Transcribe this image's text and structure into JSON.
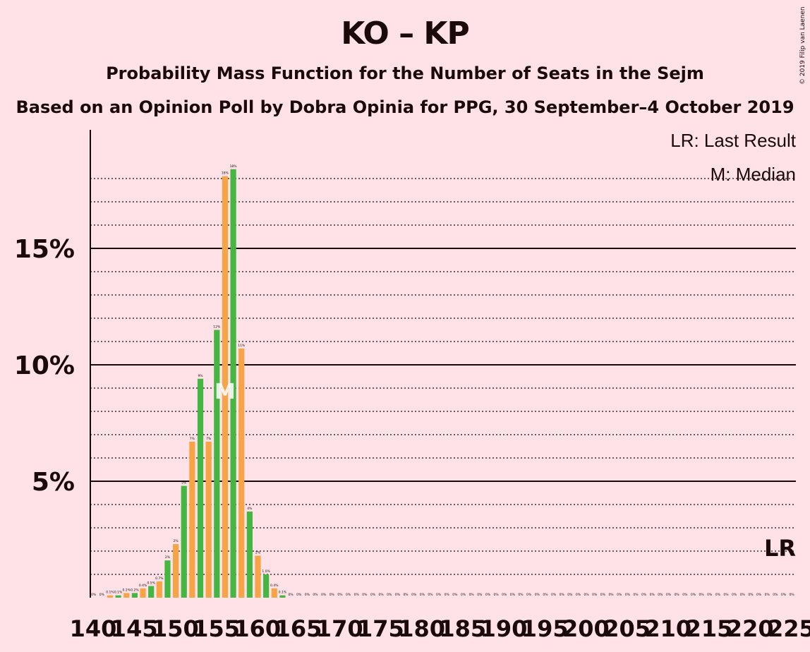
{
  "title": "KO – KP",
  "subtitle": "Probability Mass Function for the Number of Seats in the Sejm",
  "subtitle2": "Based on an Opinion Poll by Dobra Opinia for PPG, 30 September–4 October 2019",
  "copyright": "© 2019 Filip van Laenen",
  "legend": {
    "lr": "LR: Last Result",
    "median": "M: Median"
  },
  "markers": {
    "median_label": "M",
    "median_seat": 156,
    "lr_label": "LR",
    "lr_seat": 225
  },
  "colors": {
    "background": "#FFE2E7",
    "green": "#44B642",
    "orange": "#F7A446",
    "text": "#1a0a0a"
  },
  "chart_data": {
    "type": "bar",
    "xlabel": "",
    "ylabel": "",
    "xlim": [
      140,
      225
    ],
    "ylim": [
      0,
      20
    ],
    "y_ticks": [
      5,
      10,
      15
    ],
    "y_tick_labels": [
      "5%",
      "10%",
      "15%"
    ],
    "x_ticks": [
      140,
      145,
      150,
      155,
      160,
      165,
      170,
      175,
      180,
      185,
      190,
      195,
      200,
      205,
      210,
      215,
      220,
      225
    ],
    "grid": true,
    "seats": [
      140,
      141,
      142,
      143,
      144,
      145,
      146,
      147,
      148,
      149,
      150,
      151,
      152,
      153,
      154,
      155,
      156,
      157,
      158,
      159,
      160,
      161,
      162,
      163,
      164,
      165,
      166,
      167,
      168,
      169,
      170,
      171,
      172,
      173,
      174,
      175,
      176,
      177,
      178,
      179,
      180,
      181,
      182,
      183,
      184,
      185,
      186,
      187,
      188,
      189,
      190,
      191,
      192,
      193,
      194,
      195,
      196,
      197,
      198,
      199,
      200,
      201,
      202,
      203,
      204,
      205,
      206,
      207,
      208,
      209,
      210,
      211,
      212,
      213,
      214,
      215,
      216,
      217,
      218,
      219,
      220,
      221,
      222,
      223,
      224,
      225
    ],
    "values": [
      0,
      0,
      0.1,
      0.1,
      0.2,
      0.2,
      0.4,
      0.5,
      0.7,
      1.6,
      2.3,
      4.8,
      6.7,
      9.4,
      6.7,
      11.5,
      18.1,
      18.4,
      10.7,
      3.7,
      1.8,
      1.0,
      0.4,
      0.1,
      0,
      0,
      0,
      0,
      0,
      0,
      0,
      0,
      0,
      0,
      0,
      0,
      0,
      0,
      0,
      0,
      0,
      0,
      0,
      0,
      0,
      0,
      0,
      0,
      0,
      0,
      0,
      0,
      0,
      0,
      0,
      0,
      0,
      0,
      0,
      0,
      0,
      0,
      0,
      0,
      0,
      0,
      0,
      0,
      0,
      0,
      0,
      0,
      0,
      0,
      0,
      0,
      0,
      0,
      0,
      0,
      0,
      0,
      0,
      0,
      0,
      0
    ],
    "labels": [
      "0%",
      "0%",
      "0.1%",
      "0.1%",
      "0.2%",
      "0.2%",
      "0.4%",
      "0.5%",
      "0.7%",
      "2%",
      "2%",
      "5%",
      "7%",
      "9%",
      "7%",
      "12%",
      "18%",
      "18%",
      "11%",
      "4%",
      "2%",
      "1.0%",
      "0.4%",
      "0.1%",
      "0%",
      "0%",
      "0%",
      "0%",
      "0%",
      "0%",
      "0%",
      "0%",
      "0%",
      "0%",
      "0%",
      "0%",
      "0%",
      "0%",
      "0%",
      "0%",
      "0%",
      "0%",
      "0%",
      "0%",
      "0%",
      "0%",
      "0%",
      "0%",
      "0%",
      "0%",
      "0%",
      "0%",
      "0%",
      "0%",
      "0%",
      "0%",
      "0%",
      "0%",
      "0%",
      "0%",
      "0%",
      "0%",
      "0%",
      "0%",
      "0%",
      "0%",
      "0%",
      "0%",
      "0%",
      "0%",
      "0%",
      "0%",
      "0%",
      "0%",
      "0%",
      "0%",
      "0%",
      "0%",
      "0%",
      "0%",
      "0%",
      "0%",
      "0%",
      "0%",
      "0%",
      "0%"
    ]
  }
}
